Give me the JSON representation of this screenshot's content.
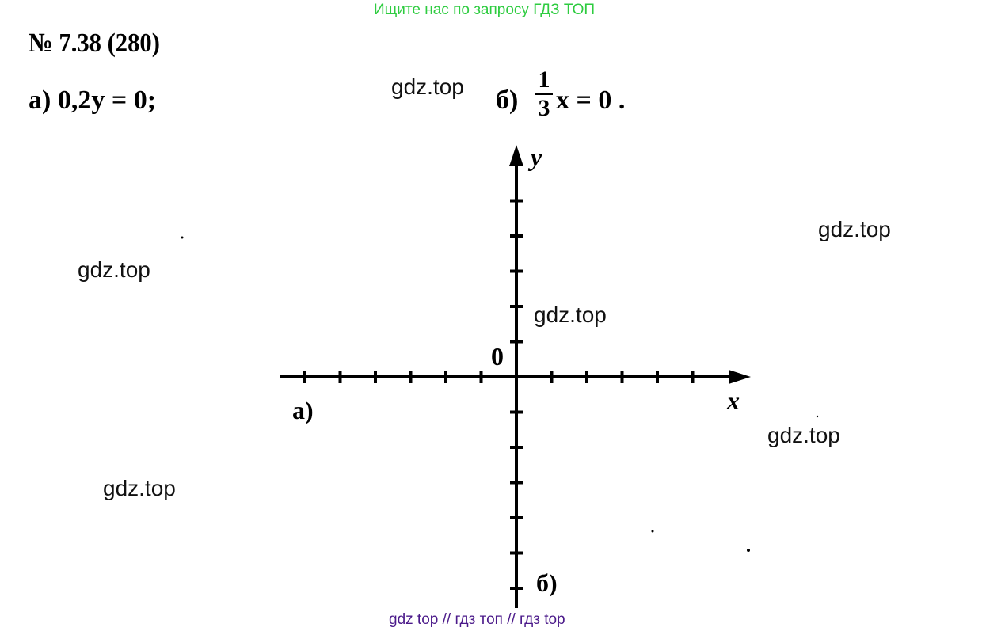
{
  "promo_text": "Ищите нас по запросу ГДЗ ТОП",
  "problem_title": "№ 7.38 (280)",
  "equation_a": {
    "label": "а)",
    "text": "0,2y = 0;"
  },
  "equation_b": {
    "label": "б)",
    "numerator": "1",
    "denominator": "3",
    "rest": "x = 0 ."
  },
  "watermark": "gdz.top",
  "graph": {
    "x_label": "x",
    "y_label": "y",
    "origin_label": "0",
    "line_a_label": "а)",
    "line_b_label": "б)"
  },
  "footer_text": "gdz top  //  гдз топ  //  гдз top"
}
